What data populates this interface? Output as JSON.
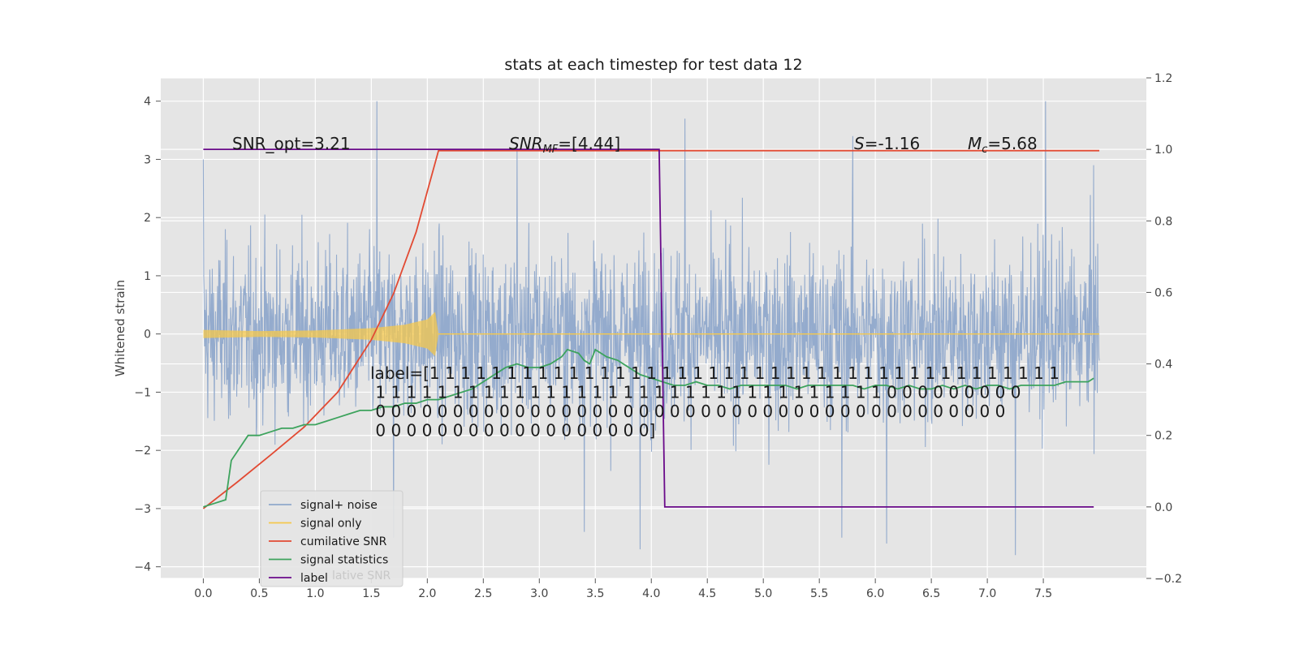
{
  "chart_data": {
    "type": "line",
    "title": "stats at each timestep for test data 12",
    "ylabel": "Whitened strain",
    "xlabel": "",
    "xlim": [
      -0.38,
      8.42
    ],
    "ylim": [
      -4.2,
      4.4
    ],
    "y2lim": [
      -0.2,
      1.2
    ],
    "grid": true,
    "legend_position": "lower-left",
    "x_ticks": [
      "0.0",
      "0.5",
      "1.0",
      "1.5",
      "2.0",
      "2.5",
      "3.0",
      "3.5",
      "4.0",
      "4.5",
      "5.0",
      "5.5",
      "6.0",
      "6.5",
      "7.0",
      "7.5"
    ],
    "y_ticks": [
      "−4",
      "−3",
      "−2",
      "−1",
      "0",
      "1",
      "2",
      "3",
      "4"
    ],
    "y2_ticks": [
      "−0.2",
      "0.0",
      "0.2",
      "0.4",
      "0.6",
      "0.8",
      "1.0",
      "1.2"
    ],
    "annotations": {
      "snr_opt": "SNR_opt=3.21",
      "snr_mf_sym": "SNR",
      "snr_mf_sub": "MF",
      "snr_mf_val": "=[4.44]",
      "s_sym": "S",
      "s_val": "=-1.16",
      "mc_sym": "M",
      "mc_sub": "c",
      "mc_val": "=5.68",
      "label_lines": [
        "label=[1 1 1 1 1 1 1 1 1 1 1 1 1 1 1 1 1 1 1 1 1 1 1 1 1 1 1 1 1 1 1 1 1 1 1 1 1 1 1 1 1",
        " 1 1 1 1 1 1 1 1 1 1 1 1 1 1 1 1 1 1 1 1 1 1 1 1 1 1 1 1 1 1 1 1 1 0 0 0 0 0 0 0 0 0",
        " 0 0 0 0 0 0 0 0 0 0 0 0 0 0 0 0 0 0 0 0 0 0 0 0 0 0 0 0 0 0 0 0 0 0 0 0 0 0 0 0 0",
        " 0 0 0 0 0 0 0 0 0 0 0 0 0 0 0 0 0 0]"
      ]
    },
    "legend": [
      {
        "label": "signal+ noise",
        "color": "#8fa8cb"
      },
      {
        "label": "signal only",
        "color": "#f5c84c"
      },
      {
        "label": "cumilative SNR",
        "color": "#e24a33"
      },
      {
        "label": "signal statistics",
        "color": "#3da35d"
      },
      {
        "label": "label",
        "color": "#6a0a8a"
      }
    ],
    "legend_ghost_text": "lative SNR",
    "series": [
      {
        "name": "signal+ noise",
        "axis": "left",
        "color": "#8fa8cb",
        "x_range": [
          0.0,
          8.0
        ],
        "envelope_typical": [
          -2.2,
          2.2
        ],
        "spikes": [
          {
            "x": 1.55,
            "y": 4.0
          },
          {
            "x": 7.52,
            "y": 4.0
          },
          {
            "x": 4.3,
            "y": 3.7
          },
          {
            "x": 3.9,
            "y": -3.7
          },
          {
            "x": 7.25,
            "y": -3.8
          },
          {
            "x": 6.1,
            "y": -3.6
          },
          {
            "x": 5.7,
            "y": -3.5
          },
          {
            "x": 1.7,
            "y": -3.5
          },
          {
            "x": 3.4,
            "y": -3.4
          },
          {
            "x": 0.0,
            "y": 3.0
          },
          {
            "x": 7.95,
            "y": 2.9
          },
          {
            "x": 2.8,
            "y": 3.2
          },
          {
            "x": 5.8,
            "y": 3.4
          }
        ]
      },
      {
        "name": "signal only",
        "axis": "left",
        "color": "#f5c84c",
        "x": [
          0.0,
          0.5,
          1.0,
          1.5,
          1.8,
          2.0,
          2.07,
          2.1,
          8.0
        ],
        "amplitude": [
          0.07,
          0.05,
          0.06,
          0.1,
          0.16,
          0.25,
          0.38,
          0.0,
          0.0
        ]
      },
      {
        "name": "cumilative SNR",
        "axis": "left",
        "color": "#e24a33",
        "x": [
          0.0,
          0.3,
          0.6,
          0.9,
          1.2,
          1.5,
          1.7,
          1.9,
          2.0,
          2.1,
          8.0
        ],
        "y": [
          -3.0,
          -2.55,
          -2.08,
          -1.6,
          -1.0,
          -0.1,
          0.7,
          1.75,
          2.45,
          3.15,
          3.15
        ]
      },
      {
        "name": "signal statistics",
        "axis": "right",
        "color": "#3da35d",
        "x": [
          0.0,
          0.1,
          0.2,
          0.25,
          0.4,
          0.5,
          0.6,
          0.7,
          0.8,
          0.9,
          1.0,
          1.1,
          1.2,
          1.3,
          1.4,
          1.5,
          1.6,
          1.7,
          1.8,
          1.9,
          2.0,
          2.1,
          2.2,
          2.3,
          2.4,
          2.5,
          2.6,
          2.7,
          2.8,
          2.9,
          3.0,
          3.1,
          3.2,
          3.25,
          3.35,
          3.4,
          3.45,
          3.5,
          3.6,
          3.7,
          3.8,
          3.9,
          4.0,
          4.1,
          4.2,
          4.3,
          4.4,
          4.5,
          4.6,
          4.7,
          4.8,
          4.9,
          5.0,
          5.1,
          5.2,
          5.3,
          5.4,
          5.5,
          5.6,
          5.7,
          5.8,
          5.9,
          6.0,
          6.1,
          6.2,
          6.3,
          6.4,
          6.5,
          6.6,
          6.7,
          6.8,
          6.9,
          7.0,
          7.1,
          7.2,
          7.3,
          7.4,
          7.5,
          7.6,
          7.7,
          7.8,
          7.9,
          7.95
        ],
        "y": [
          0.0,
          0.01,
          0.02,
          0.13,
          0.2,
          0.2,
          0.21,
          0.22,
          0.22,
          0.23,
          0.23,
          0.24,
          0.25,
          0.26,
          0.27,
          0.27,
          0.28,
          0.28,
          0.29,
          0.29,
          0.3,
          0.3,
          0.31,
          0.32,
          0.33,
          0.35,
          0.37,
          0.39,
          0.4,
          0.39,
          0.39,
          0.4,
          0.42,
          0.44,
          0.43,
          0.41,
          0.4,
          0.44,
          0.42,
          0.41,
          0.39,
          0.37,
          0.36,
          0.35,
          0.34,
          0.34,
          0.35,
          0.34,
          0.34,
          0.33,
          0.34,
          0.34,
          0.34,
          0.34,
          0.34,
          0.33,
          0.34,
          0.34,
          0.34,
          0.34,
          0.34,
          0.33,
          0.34,
          0.34,
          0.33,
          0.34,
          0.33,
          0.33,
          0.34,
          0.33,
          0.34,
          0.33,
          0.34,
          0.34,
          0.33,
          0.34,
          0.34,
          0.34,
          0.34,
          0.35,
          0.35,
          0.35,
          0.36
        ]
      },
      {
        "name": "label",
        "axis": "right",
        "color": "#6a0a8a",
        "x": [
          0.0,
          4.07,
          4.12,
          7.95
        ],
        "y": [
          1.0,
          1.0,
          0.0,
          0.0
        ]
      }
    ]
  }
}
